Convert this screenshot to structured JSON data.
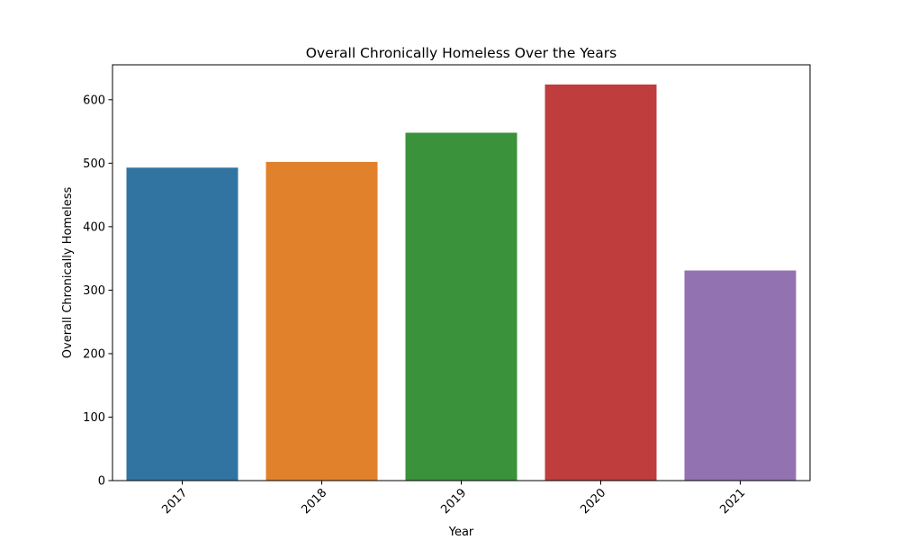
{
  "chart_data": {
    "type": "bar",
    "title": "Overall Chronically Homeless Over the Years",
    "xlabel": "Year",
    "ylabel": "Overall Chronically Homeless",
    "categories": [
      "2017",
      "2018",
      "2019",
      "2020",
      "2021"
    ],
    "values": [
      493,
      502,
      548,
      624,
      331
    ],
    "colors": [
      "#3274a1",
      "#e1812c",
      "#3a923a",
      "#c03d3e",
      "#9372b2"
    ],
    "ylim": [
      0,
      655
    ],
    "yticks": [
      0,
      100,
      200,
      300,
      400,
      500,
      600
    ],
    "xtick_rotation": 45,
    "grid": false,
    "legend": false
  }
}
